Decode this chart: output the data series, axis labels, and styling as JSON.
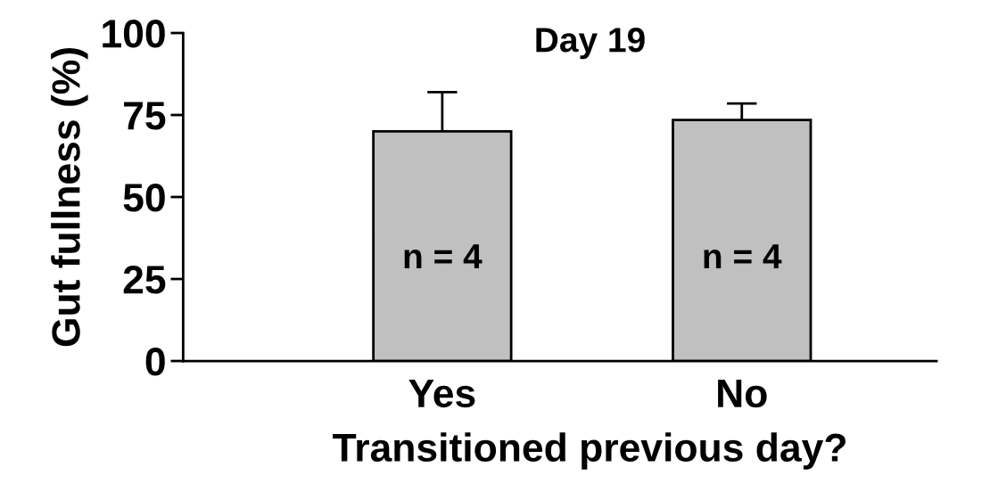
{
  "chart_data": {
    "type": "bar",
    "title": "Day 19",
    "xlabel": "Transitioned previous day?",
    "ylabel": "Gut fullness (%)",
    "categories": [
      "Yes",
      "No"
    ],
    "values": [
      70,
      73.5
    ],
    "errors": [
      12,
      5
    ],
    "color": "#c0c0c0",
    "ylim": [
      0,
      100
    ],
    "yticks": [
      0,
      25,
      50,
      75,
      100
    ],
    "grid": false,
    "legend": false,
    "annotations": [
      "n = 4",
      "n = 4"
    ]
  }
}
